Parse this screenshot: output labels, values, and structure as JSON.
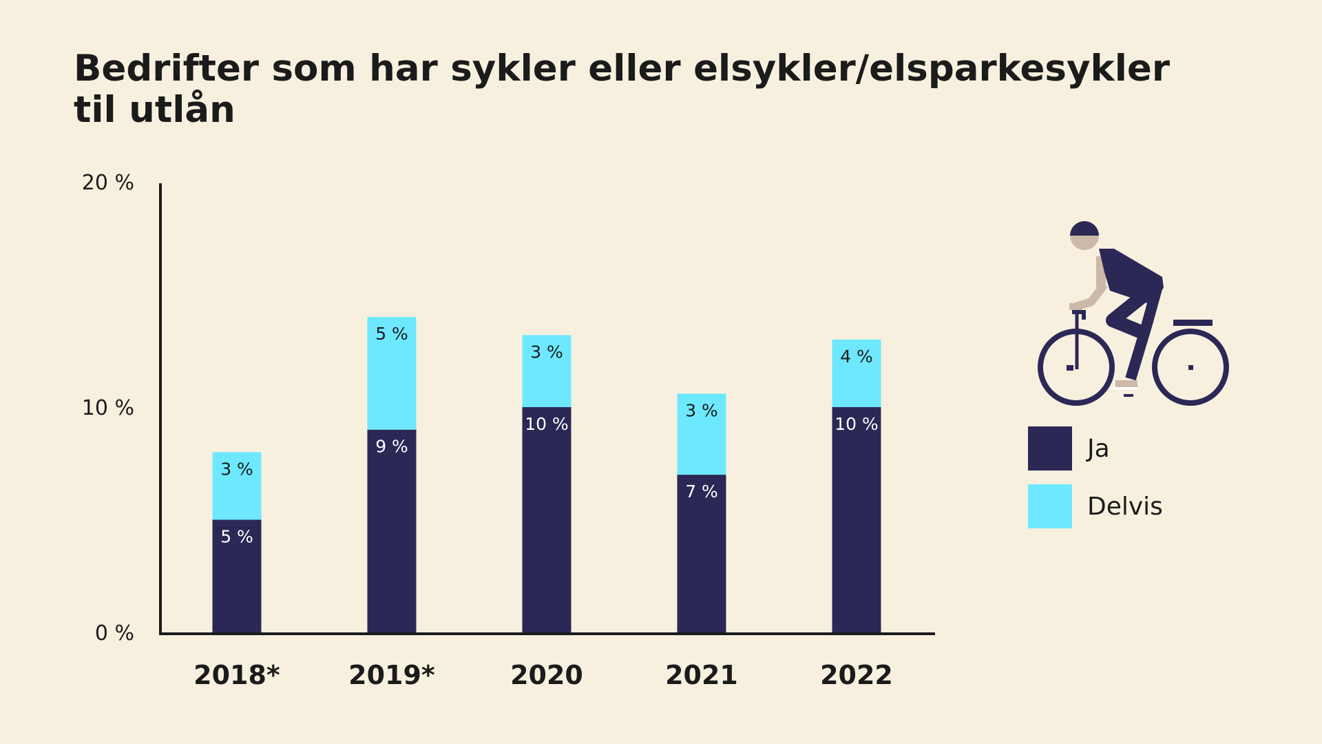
{
  "colors": {
    "background": "#f8f0df",
    "ja": "#2b2856",
    "delvis": "#6ee8fe",
    "text": "#1b1b1b",
    "axis": "#1b1b1b",
    "skin": "#cdb9a7"
  },
  "chart_data": {
    "type": "bar",
    "stacked": true,
    "title": "Bedrifter som har sykler eller elsykler/elsparkesykler til utlån",
    "categories": [
      "2018*",
      "2019*",
      "2020",
      "2021",
      "2022"
    ],
    "series": [
      {
        "name": "Ja",
        "color": "#2b2856",
        "values": [
          5,
          9,
          10,
          7,
          10
        ],
        "labels": [
          "5 %",
          "9 %",
          "10 %",
          "7 %",
          "10 %"
        ]
      },
      {
        "name": "Delvis",
        "color": "#6ee8fe",
        "values": [
          3,
          5,
          3,
          3,
          4
        ],
        "labels": [
          "3 %",
          "5 %",
          "3 %",
          "3 %",
          "4 %"
        ]
      }
    ],
    "totals": [
      8,
      14,
      13.2,
      10.6,
      13
    ],
    "ylim": [
      0,
      20
    ],
    "yticks": [
      0,
      10,
      20
    ],
    "ytick_labels": [
      "0 %",
      "10 %",
      "20 %"
    ],
    "xlabel": "",
    "ylabel": "",
    "grid": false,
    "legend_position": "right"
  },
  "legend": {
    "items": [
      {
        "label": "Ja",
        "color": "#2b2856"
      },
      {
        "label": "Delvis",
        "color": "#6ee8fe"
      }
    ]
  },
  "decoration": {
    "icon": "cyclist-icon"
  }
}
